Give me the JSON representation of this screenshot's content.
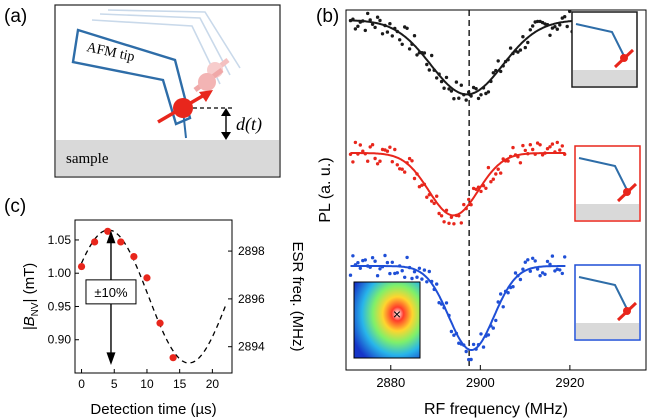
{
  "panel_labels": {
    "a": "(a)",
    "b": "(b)",
    "c": "(c)"
  },
  "panel_a": {
    "tip_label": "AFM tip",
    "sample_label": "sample",
    "distance_label": "d(t)"
  },
  "panel_c": {
    "annotation": "±10%",
    "xlabel": "Detection time (µs)",
    "ylabel_left_pre": "|B",
    "ylabel_left_sub": "NV",
    "ylabel_left_post": "| (mT)",
    "ylabel_right": "ESR freq. (MHz)"
  },
  "panel_b": {
    "xlabel": "RF frequency (MHz)",
    "ylabel": "PL (a. u.)",
    "dashed_line_freq": 2897.5
  },
  "colors": {
    "black_series": "#1a1a1a",
    "red_series": "#e8261c",
    "blue_series": "#1f4fd6",
    "tip": "#2e6da8",
    "sample": "#d9d9d9",
    "nv_center": "#e8261c"
  },
  "chart_data": [
    {
      "type": "scatter",
      "panel": "c",
      "title": "",
      "xlabel": "Detection time (µs)",
      "ylabel": "|B_NV| (mT)",
      "ylabel_right": "ESR freq. (MHz)",
      "xlim": [
        -1,
        23
      ],
      "ylim": [
        0.85,
        1.08
      ],
      "ylim_right": [
        2892.9,
        2899.3
      ],
      "xticks": [
        0,
        5,
        10,
        15,
        20
      ],
      "yticks": [
        0.9,
        0.95,
        1.0,
        1.05
      ],
      "yticks_right": [
        2894,
        2896,
        2898
      ],
      "points": {
        "x": [
          0,
          2,
          4,
          6,
          8,
          10,
          12,
          14
        ],
        "y": [
          1.01,
          1.047,
          1.063,
          1.047,
          1.025,
          0.993,
          0.925,
          0.873
        ]
      },
      "fit_curve": {
        "style": "dashed",
        "offset": 0.965,
        "amplitude": 0.1,
        "period_us": 24.6,
        "peak_time_us": 4.1,
        "t_range": [
          0,
          22
        ]
      },
      "grid": false
    },
    {
      "type": "scatter",
      "panel": "b",
      "xlabel": "RF frequency (MHz)",
      "ylabel": "PL (a. u.)",
      "xlim": [
        2870,
        2937
      ],
      "xticks": [
        2880,
        2900,
        2920
      ],
      "grid": false,
      "series": [
        {
          "color": "#1a1a1a",
          "center": 2897,
          "width": 8,
          "baseline": 1.0,
          "depth": 0.62,
          "x_range": [
            2871,
            2922
          ]
        },
        {
          "color": "#e8261c",
          "center": 2894,
          "width": 5.5,
          "baseline": 1.0,
          "depth": 0.52,
          "x_range": [
            2871,
            2919
          ]
        },
        {
          "color": "#1f4fd6",
          "center": 2898,
          "width": 5,
          "baseline": 1.0,
          "depth": 0.7,
          "x_range": [
            2871,
            2919
          ]
        }
      ]
    }
  ]
}
